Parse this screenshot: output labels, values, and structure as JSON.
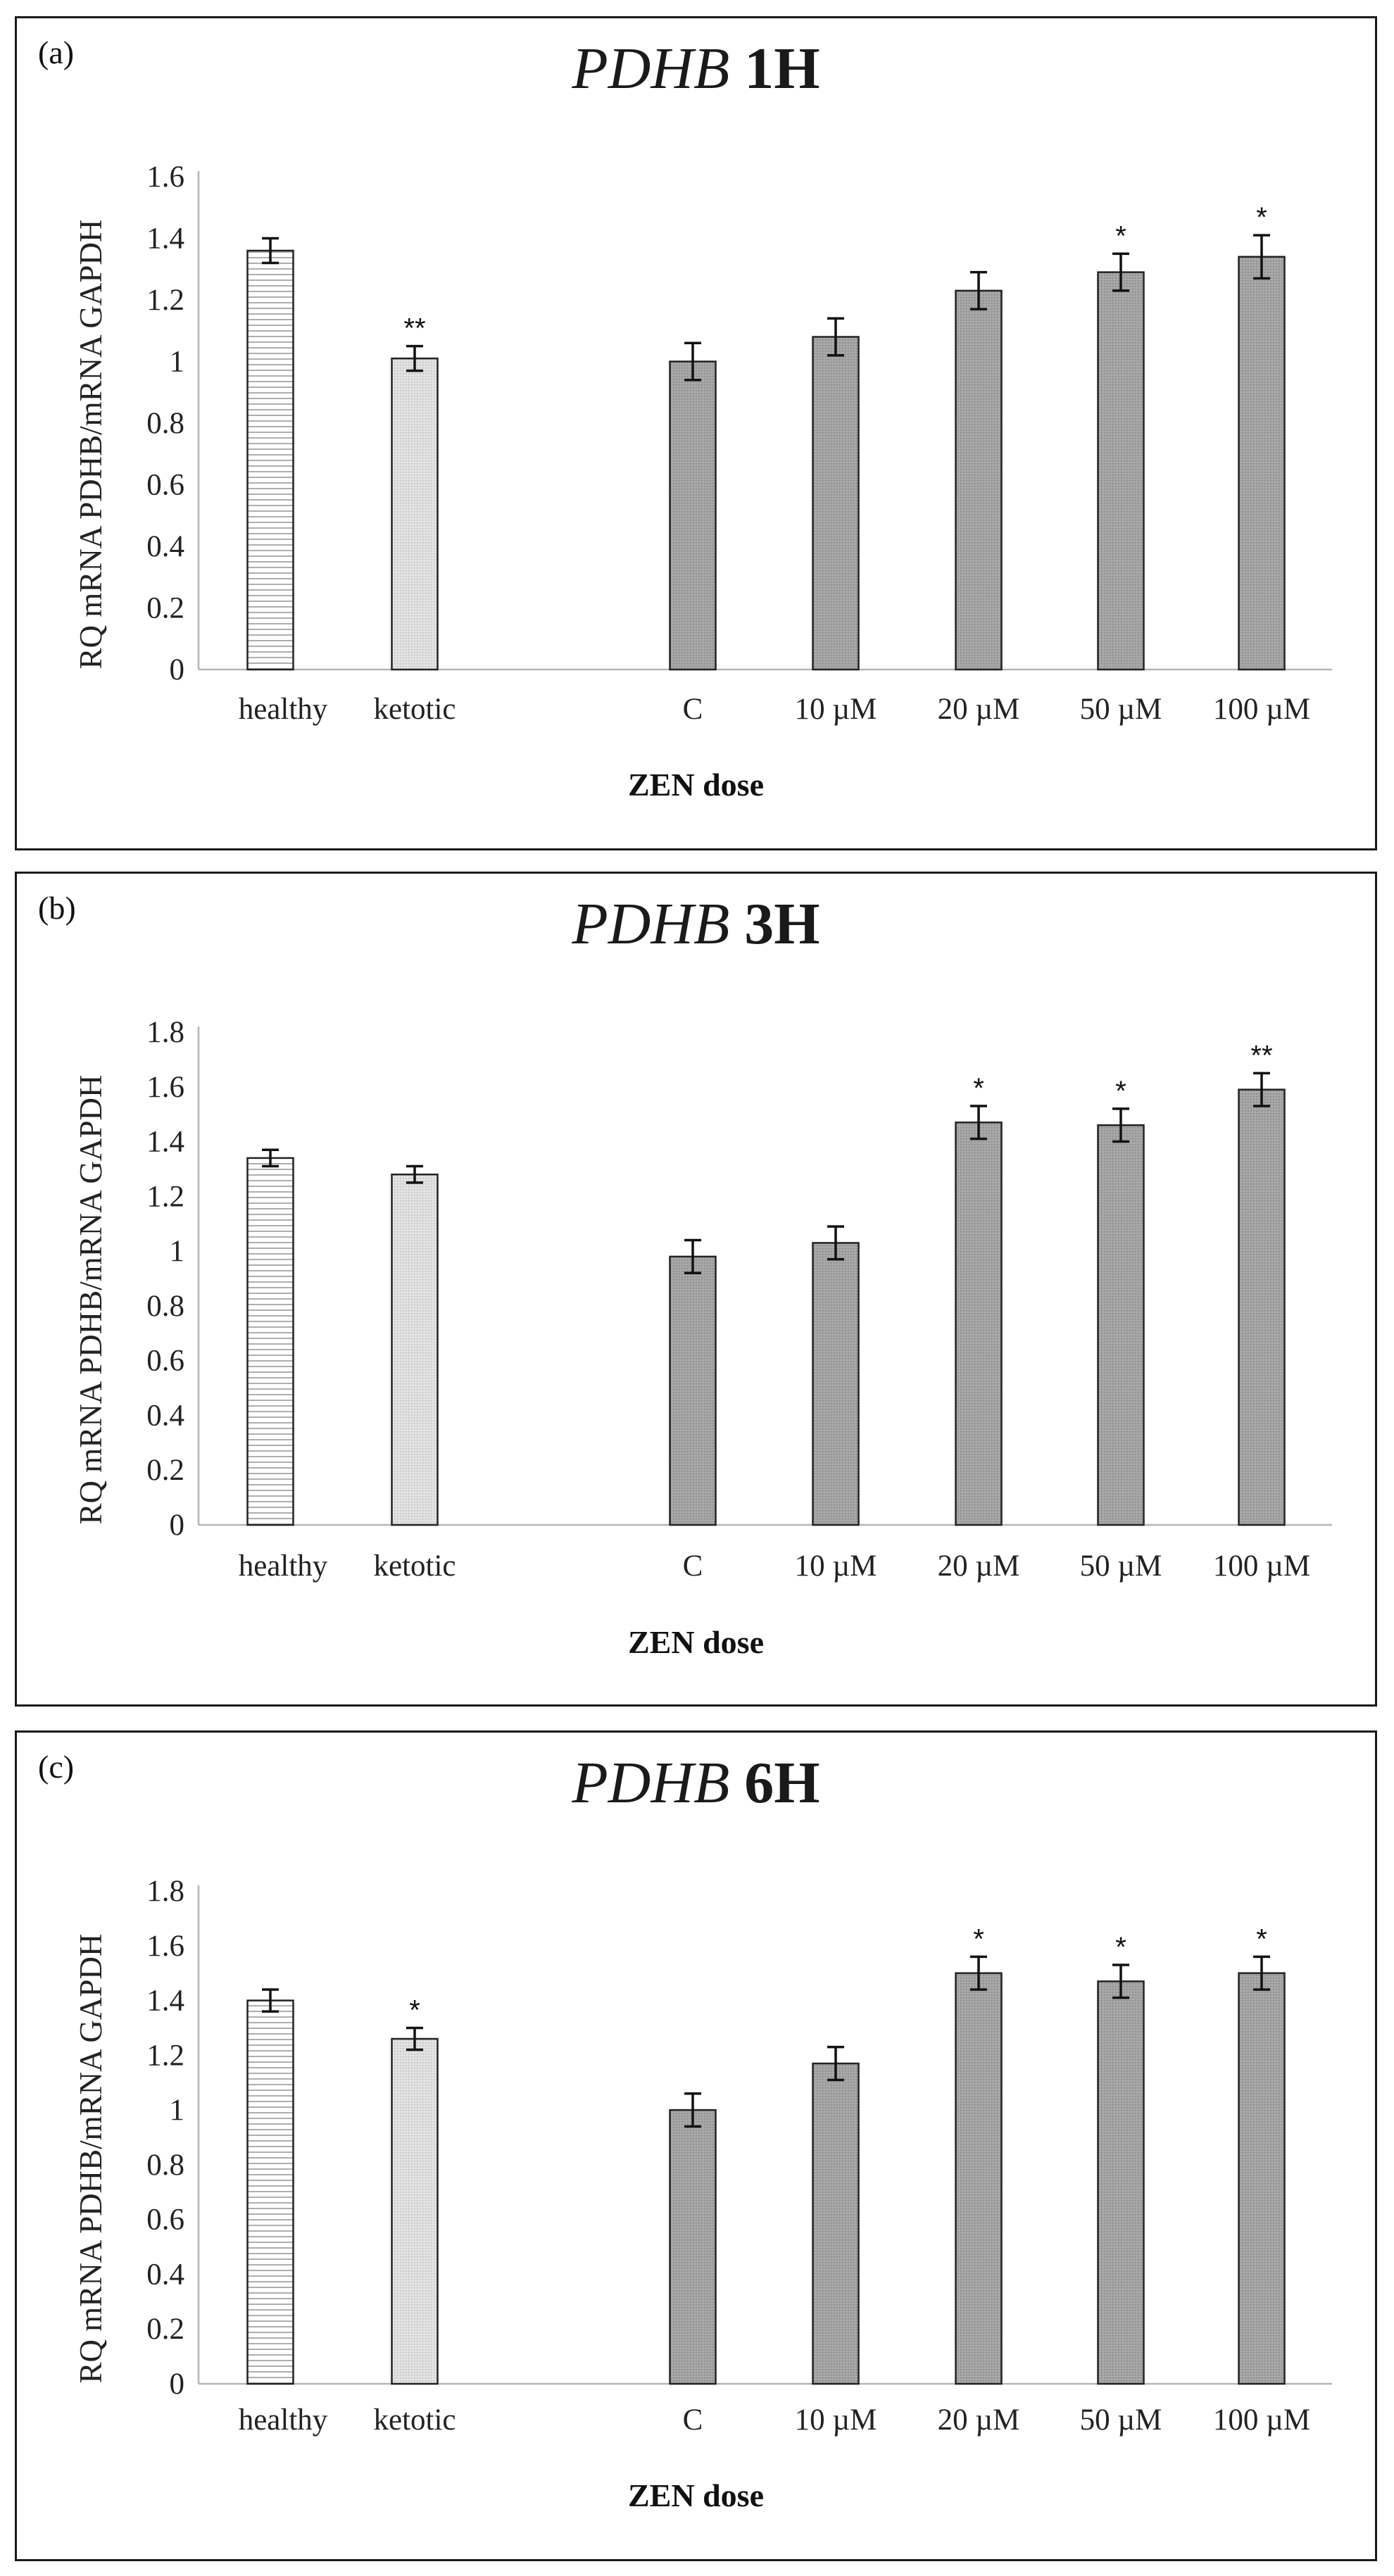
{
  "chart_data": [
    {
      "type": "bar",
      "panel_letter": "(a)",
      "title_gene": "PDHB",
      "title_time": "1H",
      "ylabel": "RQ mRNA PDHB/mRNA GAPDH",
      "xlabel": "ZEN dose",
      "ylim": [
        0,
        1.6
      ],
      "yticks": [
        "0",
        "0.2",
        "0.4",
        "0.6",
        "0.8",
        "1",
        "1.2",
        "1.4",
        "1.6"
      ],
      "categories": [
        "healthy",
        "ketotic",
        "C",
        "10 µM",
        "20 µM",
        "50 µM",
        "100 µM"
      ],
      "values": [
        1.36,
        1.01,
        1.0,
        1.08,
        1.23,
        1.29,
        1.34
      ],
      "errors": [
        0.04,
        0.04,
        0.06,
        0.06,
        0.06,
        0.06,
        0.07
      ],
      "significance": [
        "",
        "**",
        "",
        "",
        "",
        "*",
        "*"
      ]
    },
    {
      "type": "bar",
      "panel_letter": "(b)",
      "title_gene": "PDHB",
      "title_time": "3H",
      "ylabel": "RQ mRNA PDHB/mRNA GAPDH",
      "xlabel": "ZEN dose",
      "ylim": [
        0,
        1.8
      ],
      "yticks": [
        "0",
        "0.2",
        "0.4",
        "0.6",
        "0.8",
        "1",
        "1.2",
        "1.4",
        "1.6",
        "1.8"
      ],
      "categories": [
        "healthy",
        "ketotic",
        "C",
        "10 µM",
        "20 µM",
        "50 µM",
        "100 µM"
      ],
      "values": [
        1.34,
        1.28,
        0.98,
        1.03,
        1.47,
        1.46,
        1.59
      ],
      "errors": [
        0.03,
        0.03,
        0.06,
        0.06,
        0.06,
        0.06,
        0.06
      ],
      "significance": [
        "",
        "",
        "",
        "",
        "*",
        "*",
        "**"
      ]
    },
    {
      "type": "bar",
      "panel_letter": "(c)",
      "title_gene": "PDHB",
      "title_time": "6H",
      "ylabel": "RQ mRNA PDHB/mRNA GAPDH",
      "xlabel": "ZEN dose",
      "ylim": [
        0,
        1.8
      ],
      "yticks": [
        "0",
        "0.2",
        "0.4",
        "0.6",
        "0.8",
        "1",
        "1.2",
        "1.4",
        "1.6",
        "1.8"
      ],
      "categories": [
        "healthy",
        "ketotic",
        "C",
        "10 µM",
        "20 µM",
        "50 µM",
        "100 µM"
      ],
      "values": [
        1.4,
        1.26,
        1.0,
        1.17,
        1.5,
        1.47,
        1.5
      ],
      "errors": [
        0.04,
        0.04,
        0.06,
        0.06,
        0.06,
        0.06,
        0.06
      ],
      "significance": [
        "",
        "*",
        "",
        "",
        "*",
        "*",
        "*"
      ]
    }
  ]
}
